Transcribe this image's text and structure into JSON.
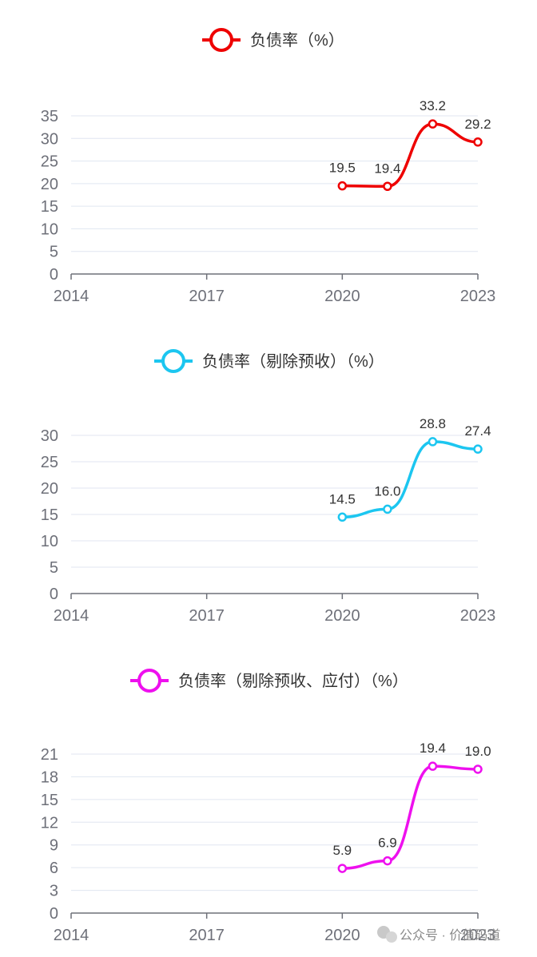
{
  "chart_data": [
    {
      "type": "line",
      "title": "",
      "legend": "负债率（%）",
      "color": "#ee0000",
      "x": [
        2020,
        2021,
        2022,
        2023
      ],
      "values": [
        19.5,
        19.4,
        33.2,
        29.2
      ],
      "labels": [
        "19.5",
        "19.4",
        "33.2",
        "29.2"
      ],
      "x_ticks": [
        "2014",
        "2017",
        "2020",
        "2023"
      ],
      "xlim": [
        2014,
        2023
      ],
      "y_ticks": [
        "0",
        "5",
        "10",
        "15",
        "20",
        "25",
        "30",
        "35"
      ],
      "ylim": [
        0,
        35
      ],
      "grid": true,
      "smooth": true,
      "legend_position": "top-center"
    },
    {
      "type": "line",
      "title": "",
      "legend": "负债率（剔除预收）（%）",
      "color": "#1cc6f0",
      "x": [
        2020,
        2021,
        2022,
        2023
      ],
      "values": [
        14.5,
        16.0,
        28.8,
        27.4
      ],
      "labels": [
        "14.5",
        "16.0",
        "28.8",
        "27.4"
      ],
      "x_ticks": [
        "2014",
        "2017",
        "2020",
        "2023"
      ],
      "xlim": [
        2014,
        2023
      ],
      "y_ticks": [
        "0",
        "5",
        "10",
        "15",
        "20",
        "25",
        "30"
      ],
      "ylim": [
        0,
        30
      ],
      "grid": true,
      "smooth": true,
      "legend_position": "top-center"
    },
    {
      "type": "line",
      "title": "",
      "legend": "负债率（剔除预收、应付）（%）",
      "color": "#ee10ee",
      "x": [
        2020,
        2021,
        2022,
        2023
      ],
      "values": [
        5.9,
        6.9,
        19.4,
        19.0
      ],
      "labels": [
        "5.9",
        "6.9",
        "19.4",
        "19.0"
      ],
      "x_ticks": [
        "2014",
        "2017",
        "2020",
        "2023"
      ],
      "xlim": [
        2014,
        2023
      ],
      "y_ticks": [
        "0",
        "3",
        "6",
        "9",
        "12",
        "15",
        "18",
        "21"
      ],
      "ylim": [
        0,
        21
      ],
      "grid": true,
      "smooth": true,
      "legend_position": "top-center"
    }
  ],
  "watermark": "公众号 · 价值码道"
}
